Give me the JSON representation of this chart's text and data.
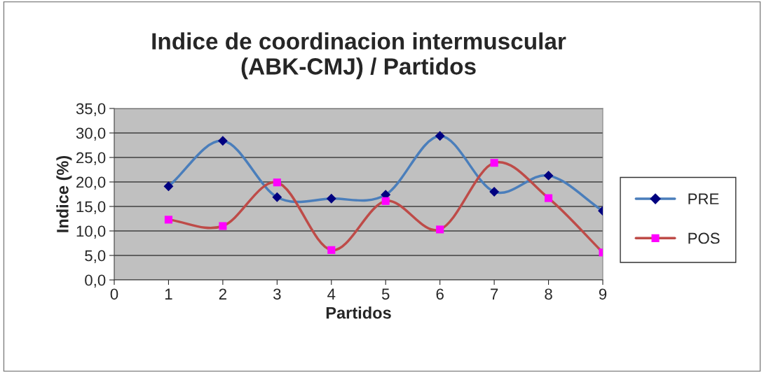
{
  "chart_data": {
    "type": "line",
    "title": "Indice de coordinacion intermuscular\n(ABK-CMJ) / Partidos",
    "xlabel": "Partidos",
    "ylabel": "Indice (%)",
    "x": [
      1,
      2,
      3,
      4,
      5,
      6,
      7,
      8,
      9
    ],
    "series": [
      {
        "name": "PRE",
        "color": "#4a7ebb",
        "colors": [
          "#000080",
          "#000080",
          "#000080",
          "#000080",
          "#000080",
          "#000080",
          "#000080",
          "#000080",
          "#000080"
        ],
        "marker": "diamond",
        "values": [
          19.1,
          28.4,
          16.9,
          16.6,
          17.4,
          29.4,
          18.0,
          21.3,
          14.1
        ]
      },
      {
        "name": "POS",
        "color": "#be4b48",
        "colors": [
          "#ff00ff",
          "#ff00ff",
          "#ff00ff",
          "#ff00ff",
          "#ff00ff",
          "#ff00ff",
          "#ff00ff",
          "#ff00ff",
          "#ff00ff"
        ],
        "marker": "square",
        "values": [
          12.3,
          11.0,
          19.9,
          6.1,
          16.1,
          10.3,
          23.9,
          16.7,
          5.6
        ]
      }
    ],
    "xlim": [
      0,
      9
    ],
    "xticks": [
      0,
      1,
      2,
      3,
      4,
      5,
      6,
      7,
      8,
      9
    ],
    "ylim": [
      0,
      35
    ],
    "yticks": [
      {
        "value": 0,
        "label": "0,0"
      },
      {
        "value": 5,
        "label": "5,0"
      },
      {
        "value": 10,
        "label": "10,0"
      },
      {
        "value": 15,
        "label": "15,0"
      },
      {
        "value": 20,
        "label": "20,0"
      },
      {
        "value": 25,
        "label": "25,0"
      },
      {
        "value": 30,
        "label": "30,0"
      },
      {
        "value": 35,
        "label": "35,0"
      }
    ],
    "grid": "y",
    "legend": "right",
    "line_style": "solid"
  }
}
